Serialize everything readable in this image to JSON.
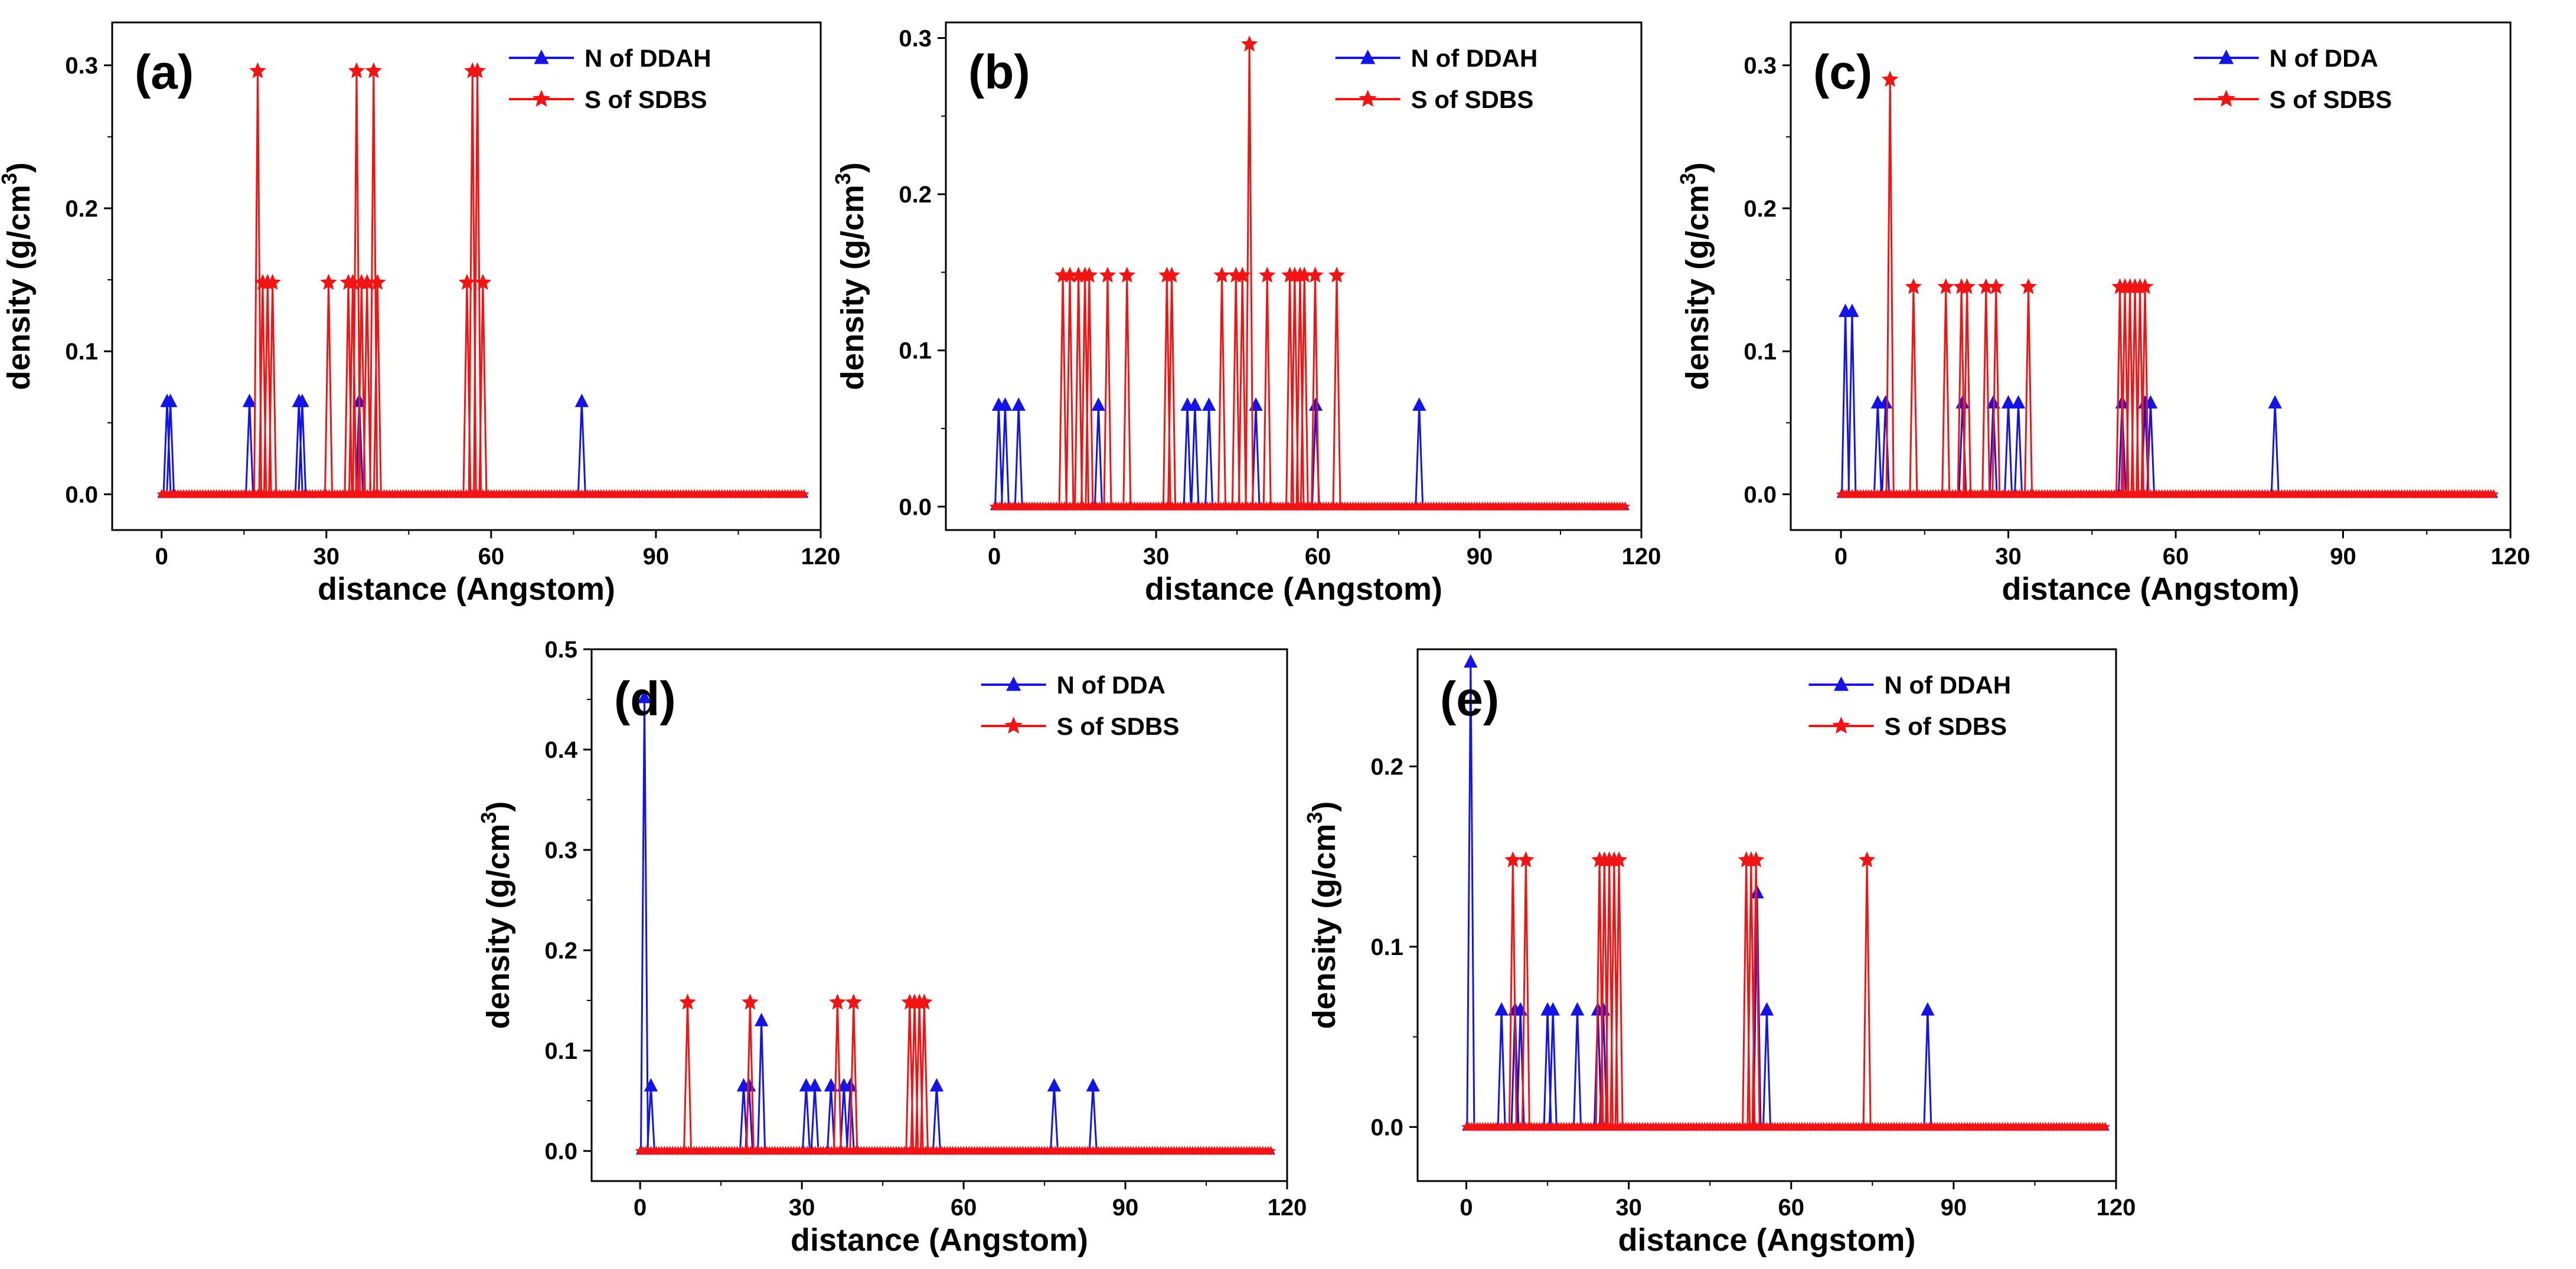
{
  "figure": {
    "colors": {
      "n_series": "#1414e6",
      "s_series": "#f01414",
      "axis": "#000000",
      "background": "#ffffff"
    }
  },
  "chart_data": [
    {
      "type": "line",
      "panel_label": "(a)",
      "xlabel": "distance (Angstom)",
      "ylabel_main": "density (g/cm",
      "ylabel_sup": "3",
      "ylabel_close": ")",
      "xlim": [
        -9,
        120
      ],
      "ylim": [
        -0.025,
        0.33
      ],
      "xticks": [
        "0",
        "30",
        "60",
        "90",
        "120"
      ],
      "yticks": [
        "0.0",
        "0.1",
        "0.2",
        "0.3"
      ],
      "legend_position": "top-right",
      "series": [
        {
          "name": "N of DDAH",
          "marker": "triangle",
          "baseline": [
            0,
            117
          ],
          "peaks": [
            [
              1,
              0.065
            ],
            [
              1.6,
              0.065
            ],
            [
              16,
              0.065
            ],
            [
              25,
              0.065
            ],
            [
              25.6,
              0.065
            ],
            [
              36,
              0.065
            ],
            [
              76.5,
              0.065
            ]
          ]
        },
        {
          "name": "S of SDBS",
          "marker": "star",
          "baseline": [
            0,
            117
          ],
          "peaks": [
            [
              17.5,
              0.296
            ],
            [
              18.4,
              0.148
            ],
            [
              19.3,
              0.148
            ],
            [
              20.2,
              0.148
            ],
            [
              30.4,
              0.148
            ],
            [
              34,
              0.148
            ],
            [
              34.8,
              0.148
            ],
            [
              35.5,
              0.296
            ],
            [
              36.4,
              0.148
            ],
            [
              37.4,
              0.148
            ],
            [
              38.6,
              0.296
            ],
            [
              39.3,
              0.148
            ],
            [
              55.6,
              0.148
            ],
            [
              56.6,
              0.296
            ],
            [
              57.5,
              0.296
            ],
            [
              58.5,
              0.148
            ]
          ]
        }
      ]
    },
    {
      "type": "line",
      "panel_label": "(b)",
      "xlabel": "distance (Angstom)",
      "ylabel_main": "density (g/cm",
      "ylabel_sup": "3",
      "ylabel_close": ")",
      "xlim": [
        -9,
        120
      ],
      "ylim": [
        -0.015,
        0.31
      ],
      "xticks": [
        "0",
        "30",
        "60",
        "90",
        "120"
      ],
      "yticks": [
        "0.0",
        "0.1",
        "0.2",
        "0.3"
      ],
      "legend_position": "top-right",
      "series": [
        {
          "name": "N of DDAH",
          "marker": "triangle",
          "baseline": [
            0,
            117
          ],
          "peaks": [
            [
              0.8,
              0.065
            ],
            [
              2,
              0.065
            ],
            [
              4.5,
              0.065
            ],
            [
              19.3,
              0.065
            ],
            [
              35.8,
              0.065
            ],
            [
              37.2,
              0.065
            ],
            [
              39.8,
              0.065
            ],
            [
              48.5,
              0.065
            ],
            [
              59.6,
              0.065
            ],
            [
              78.8,
              0.065
            ]
          ]
        },
        {
          "name": "S of SDBS",
          "marker": "star",
          "baseline": [
            0,
            117
          ],
          "peaks": [
            [
              12.7,
              0.148
            ],
            [
              14,
              0.148
            ],
            [
              15.6,
              0.148
            ],
            [
              16.8,
              0.148
            ],
            [
              17.6,
              0.148
            ],
            [
              21,
              0.148
            ],
            [
              24.6,
              0.148
            ],
            [
              32,
              0.148
            ],
            [
              32.9,
              0.148
            ],
            [
              42.2,
              0.148
            ],
            [
              44.8,
              0.148
            ],
            [
              46,
              0.148
            ],
            [
              47.3,
              0.296
            ],
            [
              50.6,
              0.148
            ],
            [
              54.8,
              0.148
            ],
            [
              55.7,
              0.148
            ],
            [
              56.7,
              0.148
            ],
            [
              57.5,
              0.148
            ],
            [
              59.5,
              0.148
            ],
            [
              63.5,
              0.148
            ]
          ]
        }
      ]
    },
    {
      "type": "line",
      "panel_label": "(c)",
      "xlabel": "distance (Angstom)",
      "ylabel_main": "density (g/cm",
      "ylabel_sup": "3",
      "ylabel_close": ")",
      "xlim": [
        -9,
        120
      ],
      "ylim": [
        -0.025,
        0.33
      ],
      "xticks": [
        "0",
        "30",
        "60",
        "90",
        "120"
      ],
      "yticks": [
        "0.0",
        "0.1",
        "0.2",
        "0.3"
      ],
      "legend_position": "top-right",
      "series": [
        {
          "name": "N of DDA",
          "marker": "triangle",
          "baseline": [
            0,
            117
          ],
          "peaks": [
            [
              0.8,
              0.128
            ],
            [
              2,
              0.128
            ],
            [
              6.6,
              0.064
            ],
            [
              8,
              0.064
            ],
            [
              21.8,
              0.064
            ],
            [
              27.3,
              0.064
            ],
            [
              30,
              0.064
            ],
            [
              31.8,
              0.064
            ],
            [
              50.4,
              0.064
            ],
            [
              54.5,
              0.064
            ],
            [
              55.5,
              0.064
            ],
            [
              77.8,
              0.064
            ]
          ]
        },
        {
          "name": "S of SDBS",
          "marker": "star",
          "baseline": [
            0,
            117
          ],
          "peaks": [
            [
              8.8,
              0.29
            ],
            [
              13,
              0.145
            ],
            [
              18.8,
              0.145
            ],
            [
              21.6,
              0.145
            ],
            [
              22.6,
              0.145
            ],
            [
              26,
              0.145
            ],
            [
              27.8,
              0.145
            ],
            [
              33.6,
              0.145
            ],
            [
              50,
              0.145
            ],
            [
              50.9,
              0.145
            ],
            [
              51.8,
              0.145
            ],
            [
              52.7,
              0.145
            ],
            [
              53.6,
              0.145
            ],
            [
              54.5,
              0.145
            ]
          ]
        }
      ]
    },
    {
      "type": "line",
      "panel_label": "(d)",
      "xlabel": "distance (Angstom)",
      "ylabel_main": "density (g/cm",
      "ylabel_sup": "3",
      "ylabel_close": ")",
      "xlim": [
        -9,
        120
      ],
      "ylim": [
        -0.03,
        0.5
      ],
      "xticks": [
        "0",
        "30",
        "60",
        "90",
        "120"
      ],
      "yticks": [
        "0.0",
        "0.1",
        "0.2",
        "0.3",
        "0.4",
        "0.5"
      ],
      "legend_position": "top-right",
      "series": [
        {
          "name": "N of DDA",
          "marker": "triangle",
          "baseline": [
            0,
            117
          ],
          "peaks": [
            [
              0.8,
              0.452
            ],
            [
              2,
              0.065
            ],
            [
              19.2,
              0.065
            ],
            [
              20.2,
              0.065
            ],
            [
              22.5,
              0.13
            ],
            [
              30.8,
              0.065
            ],
            [
              32.4,
              0.065
            ],
            [
              35.4,
              0.065
            ],
            [
              37.8,
              0.065
            ],
            [
              39,
              0.065
            ],
            [
              55,
              0.065
            ],
            [
              76.8,
              0.065
            ],
            [
              84,
              0.065
            ]
          ]
        },
        {
          "name": "S of SDBS",
          "marker": "star",
          "baseline": [
            0,
            117
          ],
          "peaks": [
            [
              8.8,
              0.148
            ],
            [
              20.4,
              0.148
            ],
            [
              36.6,
              0.148
            ],
            [
              39.6,
              0.148
            ],
            [
              50,
              0.148
            ],
            [
              50.9,
              0.148
            ],
            [
              51.8,
              0.148
            ],
            [
              52.7,
              0.148
            ]
          ]
        }
      ]
    },
    {
      "type": "line",
      "panel_label": "(e)",
      "xlabel": "distance (Angstom)",
      "ylabel_main": "density (g/cm",
      "ylabel_sup": "3",
      "ylabel_close": ")",
      "xlim": [
        -9,
        120
      ],
      "ylim": [
        -0.03,
        0.265
      ],
      "xticks": [
        "0",
        "30",
        "60",
        "90",
        "120"
      ],
      "yticks": [
        "0.0",
        "0.1",
        "0.2"
      ],
      "legend_position": "top-right",
      "series": [
        {
          "name": "N of DDAH",
          "marker": "triangle",
          "baseline": [
            0,
            118
          ],
          "peaks": [
            [
              0.8,
              0.258
            ],
            [
              6.5,
              0.065
            ],
            [
              9,
              0.065
            ],
            [
              10,
              0.065
            ],
            [
              15,
              0.065
            ],
            [
              16,
              0.065
            ],
            [
              20.5,
              0.065
            ],
            [
              24.3,
              0.065
            ],
            [
              25.3,
              0.065
            ],
            [
              53.7,
              0.13
            ],
            [
              55.5,
              0.065
            ],
            [
              85.2,
              0.065
            ]
          ]
        },
        {
          "name": "S of SDBS",
          "marker": "star",
          "baseline": [
            0,
            118
          ],
          "peaks": [
            [
              8.6,
              0.148
            ],
            [
              11,
              0.148
            ],
            [
              24.6,
              0.148
            ],
            [
              25.5,
              0.148
            ],
            [
              26.4,
              0.148
            ],
            [
              27.3,
              0.148
            ],
            [
              28.2,
              0.148
            ],
            [
              51.7,
              0.148
            ],
            [
              52.6,
              0.148
            ],
            [
              53.5,
              0.148
            ],
            [
              74,
              0.148
            ]
          ]
        }
      ]
    }
  ]
}
